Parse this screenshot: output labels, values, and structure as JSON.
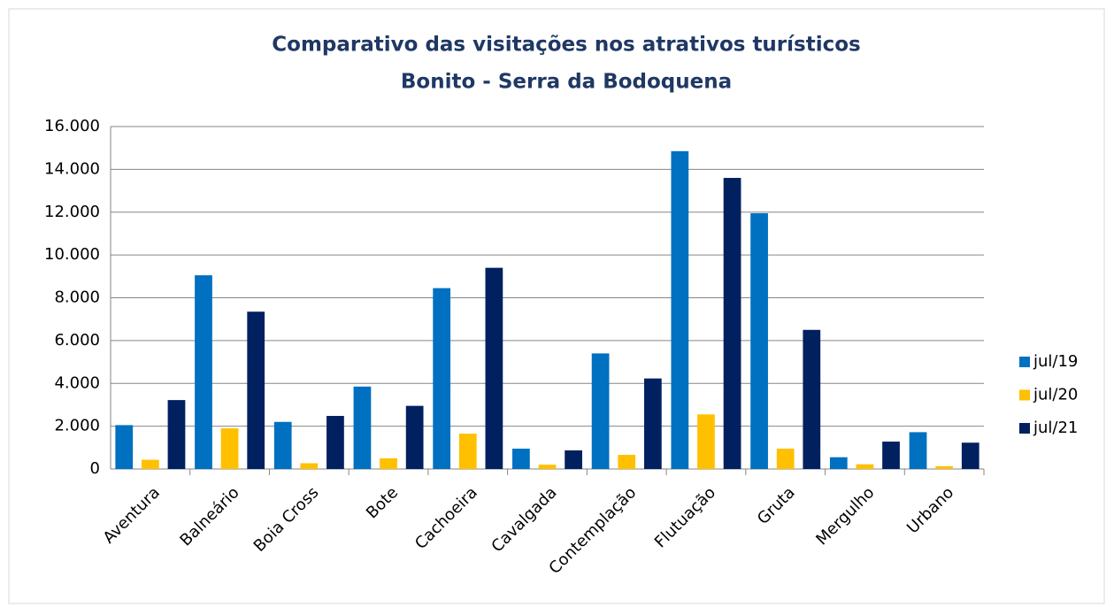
{
  "chart_data": {
    "type": "bar",
    "title": "Comparativo das visitações nos atrativos turísticos",
    "subtitle": "Bonito - Serra da Bodoquena",
    "categories": [
      "Aventura",
      "Balneário",
      "Boia Cross",
      "Bote",
      "Cachoeira",
      "Cavalgada",
      "Contemplação",
      "Flutuação",
      "Gruta",
      "Mergulho",
      "Urbano"
    ],
    "series": [
      {
        "name": "jul/19",
        "color": "#0070c0",
        "values": [
          2050,
          9050,
          2200,
          3850,
          8450,
          950,
          5400,
          14850,
          11950,
          550,
          1720
        ]
      },
      {
        "name": "jul/20",
        "color": "#ffc000",
        "values": [
          430,
          1900,
          270,
          500,
          1650,
          200,
          660,
          2550,
          950,
          220,
          130
        ]
      },
      {
        "name": "jul/21",
        "color": "#002060",
        "values": [
          3220,
          7350,
          2480,
          2950,
          9400,
          870,
          4230,
          13600,
          6500,
          1280,
          1230
        ]
      }
    ],
    "ylim": [
      0,
      16000
    ],
    "yticks": [
      0,
      {
        "value": 2000,
        "label": "2.000"
      },
      {
        "value": 4000,
        "label": "4.000"
      },
      {
        "value": 6000,
        "label": "6.000"
      },
      {
        "value": 8000,
        "label": "8.000"
      },
      {
        "value": 10000,
        "label": "10.000"
      },
      {
        "value": 12000,
        "label": "12.000"
      },
      {
        "value": 14000,
        "label": "14.000"
      },
      {
        "value": 16000,
        "label": "16.000"
      }
    ],
    "grid": true,
    "legend": "right"
  }
}
